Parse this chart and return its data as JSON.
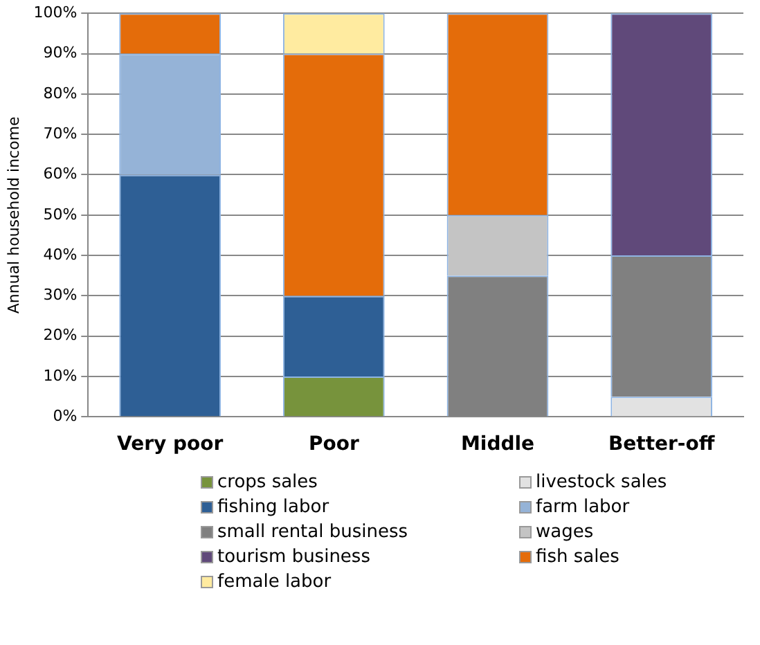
{
  "chart_data": {
    "type": "bar",
    "stacked": true,
    "ylabel": "Annual household income",
    "categories": [
      "Very poor",
      "Poor",
      "Middle",
      "Better-off"
    ],
    "ylim": [
      0,
      100
    ],
    "yticks": [
      {
        "value": 0,
        "label": "0%"
      },
      {
        "value": 10,
        "label": "10%"
      },
      {
        "value": 20,
        "label": "20%"
      },
      {
        "value": 30,
        "label": "30%"
      },
      {
        "value": 40,
        "label": "40%"
      },
      {
        "value": 50,
        "label": "50%"
      },
      {
        "value": 60,
        "label": "60%"
      },
      {
        "value": 70,
        "label": "70%"
      },
      {
        "value": 80,
        "label": "80%"
      },
      {
        "value": 90,
        "label": "90%"
      },
      {
        "value": 100,
        "label": "100%"
      }
    ],
    "grid": "y",
    "legend": "bottom",
    "series": [
      {
        "name": "crops sales",
        "color": "#77933c",
        "values": [
          null,
          10,
          null,
          null
        ]
      },
      {
        "name": "livestock sales",
        "color": "#e2e2e2",
        "values": [
          null,
          null,
          null,
          5
        ]
      },
      {
        "name": "fishing labor",
        "color": "#2e5f95",
        "values": [
          60,
          20,
          null,
          null
        ]
      },
      {
        "name": "farm labor",
        "color": "#95b3d7",
        "values": [
          30,
          null,
          null,
          null
        ]
      },
      {
        "name": "small rental business",
        "color": "#808080",
        "values": [
          null,
          null,
          35,
          35
        ]
      },
      {
        "name": "wages",
        "color": "#c4c4c4",
        "values": [
          null,
          null,
          15,
          null
        ]
      },
      {
        "name": "tourism business",
        "color": "#60497a",
        "values": [
          null,
          null,
          null,
          60
        ]
      },
      {
        "name": "fish sales",
        "color": "#e46c0a",
        "values": [
          10,
          60,
          50,
          null
        ]
      },
      {
        "name": "female labor",
        "color": "#ffeba0",
        "values": [
          null,
          10,
          null,
          null
        ]
      }
    ]
  }
}
